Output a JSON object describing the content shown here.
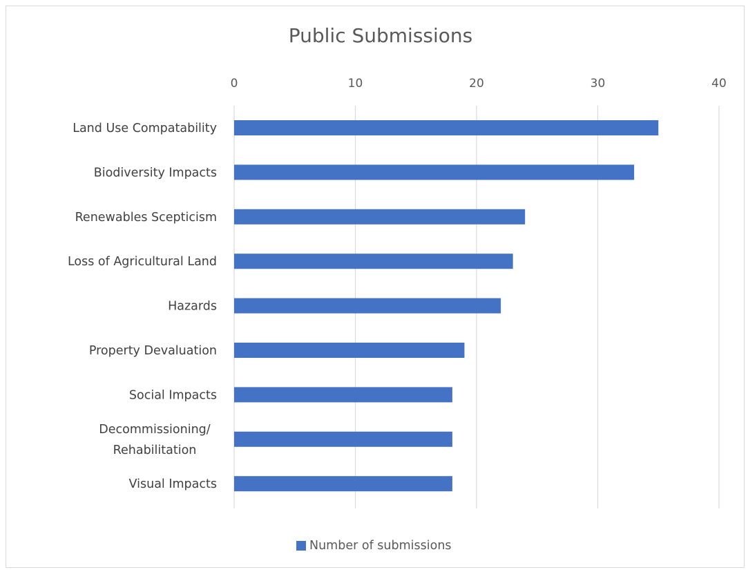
{
  "chart_data": {
    "type": "bar",
    "orientation": "horizontal",
    "title": "Public Submissions",
    "categories": [
      "Land Use Compatability",
      "Biodiversity Impacts",
      "Renewables Scepticism",
      "Loss of Agricultural Land",
      "Hazards",
      "Property Devaluation",
      "Social Impacts",
      "Decommissioning/ Rehabilitation",
      "Visual Impacts"
    ],
    "category_lines": [
      [
        "Land Use Compatability"
      ],
      [
        "Biodiversity Impacts"
      ],
      [
        "Renewables Scepticism"
      ],
      [
        "Loss of Agricultural Land"
      ],
      [
        "Hazards"
      ],
      [
        "Property Devaluation"
      ],
      [
        "Social Impacts"
      ],
      [
        "Decommissioning/",
        "Rehabilitation"
      ],
      [
        "Visual Impacts"
      ]
    ],
    "series": [
      {
        "name": "Number of submissions",
        "color": "#4472c4",
        "values": [
          35,
          33,
          24,
          23,
          22,
          19,
          18,
          18,
          18
        ]
      }
    ],
    "xlim": [
      0,
      40
    ],
    "x_ticks": [
      0,
      10,
      20,
      30,
      40
    ],
    "x_tick_labels": [
      "0",
      "10",
      "20",
      "30",
      "40"
    ],
    "x_axis_position": "top",
    "grid": true,
    "legend_position": "bottom"
  }
}
